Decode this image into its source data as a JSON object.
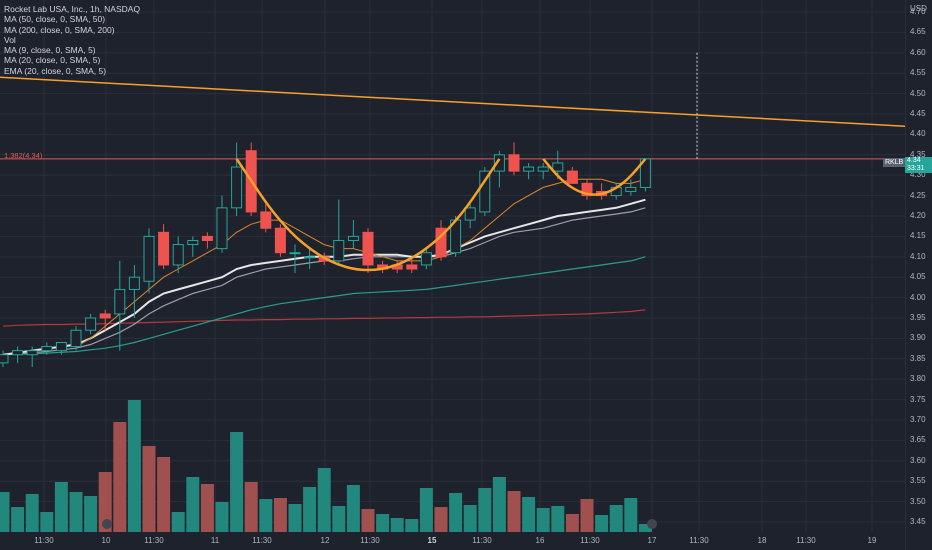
{
  "legend": {
    "title": "Rocket Lab USA, Inc., 1h, NASDAQ",
    "lines": [
      "MA (50, close, 0, SMA, 50)",
      "MA (200, close, 0, SMA, 200)",
      "Vol",
      "MA (9, close, 0, SMA, 5)",
      "MA (20, close, 0, SMA, 5)",
      "EMA (20, close, 0, SMA, 5)"
    ]
  },
  "currency": "USD",
  "fib_label": "1.382(4.34)",
  "ticker_tag": "RKLB",
  "price_tag": "4.34",
  "price_tag_sub": "33:31",
  "colors": {
    "up": "#26a69a",
    "down": "#ef5350",
    "up_vol": "#22877d",
    "down_vol": "#a0504f",
    "background": "#1e222d",
    "trendline": "#f7a028",
    "cup": "#f7a028",
    "fib": "#e05a5a",
    "ma_white": "#e6e6e6",
    "ma_gray": "#9aa0ab",
    "ma_teal": "#2a9d8f",
    "ma_red": "#b23a3a",
    "ma_orange": "#d9892b"
  },
  "chart_data": {
    "type": "candlestick",
    "y_ticks": [
      "4.70",
      "4.65",
      "4.60",
      "4.55",
      "4.50",
      "4.45",
      "4.40",
      "4.35",
      "4.30",
      "4.25",
      "4.20",
      "4.15",
      "4.10",
      "4.05",
      "4.00",
      "3.95",
      "3.90",
      "3.85",
      "3.80",
      "3.75",
      "3.70",
      "3.65",
      "3.60",
      "3.55",
      "3.50",
      "3.45"
    ],
    "ylim": [
      3.42,
      4.72
    ],
    "x_labels": [
      {
        "label": "11:30",
        "bold": false
      },
      {
        "label": "10",
        "bold": false
      },
      {
        "label": "11:30",
        "bold": false
      },
      {
        "label": "11",
        "bold": false
      },
      {
        "label": "11:30",
        "bold": false
      },
      {
        "label": "12",
        "bold": false
      },
      {
        "label": "11:30",
        "bold": false
      },
      {
        "label": "15",
        "bold": true
      },
      {
        "label": "11:30",
        "bold": false
      },
      {
        "label": "16",
        "bold": false
      },
      {
        "label": "11:30",
        "bold": false
      },
      {
        "label": "17",
        "bold": false
      },
      {
        "label": "11:30",
        "bold": false
      },
      {
        "label": "18",
        "bold": false
      },
      {
        "label": "11:30",
        "bold": false
      },
      {
        "label": "19",
        "bold": false
      }
    ],
    "candles": [
      {
        "o": 3.84,
        "h": 3.87,
        "l": 3.83,
        "c": 3.86
      },
      {
        "o": 3.86,
        "h": 3.88,
        "l": 3.84,
        "c": 3.87
      },
      {
        "o": 3.86,
        "h": 3.88,
        "l": 3.83,
        "c": 3.87
      },
      {
        "o": 3.87,
        "h": 3.89,
        "l": 3.86,
        "c": 3.88
      },
      {
        "o": 3.87,
        "h": 3.89,
        "l": 3.86,
        "c": 3.89
      },
      {
        "o": 3.88,
        "h": 3.93,
        "l": 3.87,
        "c": 3.92
      },
      {
        "o": 3.92,
        "h": 3.96,
        "l": 3.91,
        "c": 3.95
      },
      {
        "o": 3.96,
        "h": 3.97,
        "l": 3.92,
        "c": 3.95
      },
      {
        "o": 3.96,
        "h": 4.09,
        "l": 3.87,
        "c": 4.02
      },
      {
        "o": 4.02,
        "h": 4.08,
        "l": 3.95,
        "c": 4.05
      },
      {
        "o": 4.04,
        "h": 4.17,
        "l": 4.01,
        "c": 4.15
      },
      {
        "o": 4.16,
        "h": 4.18,
        "l": 4.07,
        "c": 4.08
      },
      {
        "o": 4.08,
        "h": 4.15,
        "l": 4.06,
        "c": 4.13
      },
      {
        "o": 4.13,
        "h": 4.15,
        "l": 4.1,
        "c": 4.14
      },
      {
        "o": 4.15,
        "h": 4.16,
        "l": 4.12,
        "c": 4.14
      },
      {
        "o": 4.12,
        "h": 4.25,
        "l": 4.11,
        "c": 4.22
      },
      {
        "o": 4.22,
        "h": 4.38,
        "l": 4.2,
        "c": 4.32
      },
      {
        "o": 4.36,
        "h": 4.38,
        "l": 4.2,
        "c": 4.21
      },
      {
        "o": 4.21,
        "h": 4.23,
        "l": 4.16,
        "c": 4.17
      },
      {
        "o": 4.17,
        "h": 4.18,
        "l": 4.1,
        "c": 4.11
      },
      {
        "o": 4.11,
        "h": 4.13,
        "l": 4.06,
        "c": 4.11
      },
      {
        "o": 4.1,
        "h": 4.12,
        "l": 4.07,
        "c": 4.1
      },
      {
        "o": 4.1,
        "h": 4.11,
        "l": 4.08,
        "c": 4.09
      },
      {
        "o": 4.09,
        "h": 4.24,
        "l": 4.08,
        "c": 4.14
      },
      {
        "o": 4.14,
        "h": 4.19,
        "l": 4.12,
        "c": 4.15
      },
      {
        "o": 4.16,
        "h": 4.17,
        "l": 4.06,
        "c": 4.08
      },
      {
        "o": 4.08,
        "h": 4.09,
        "l": 4.06,
        "c": 4.07
      },
      {
        "o": 4.08,
        "h": 4.09,
        "l": 4.06,
        "c": 4.07
      },
      {
        "o": 4.08,
        "h": 4.1,
        "l": 4.06,
        "c": 4.07
      },
      {
        "o": 4.08,
        "h": 4.12,
        "l": 4.07,
        "c": 4.11
      },
      {
        "o": 4.17,
        "h": 4.19,
        "l": 4.09,
        "c": 4.1
      },
      {
        "o": 4.11,
        "h": 4.2,
        "l": 4.1,
        "c": 4.19
      },
      {
        "o": 4.19,
        "h": 4.23,
        "l": 4.17,
        "c": 4.22
      },
      {
        "o": 4.21,
        "h": 4.32,
        "l": 4.2,
        "c": 4.31
      },
      {
        "o": 4.31,
        "h": 4.36,
        "l": 4.27,
        "c": 4.35
      },
      {
        "o": 4.35,
        "h": 4.38,
        "l": 4.3,
        "c": 4.31
      },
      {
        "o": 4.31,
        "h": 4.33,
        "l": 4.29,
        "c": 4.32
      },
      {
        "o": 4.31,
        "h": 4.33,
        "l": 4.29,
        "c": 4.32
      },
      {
        "o": 4.31,
        "h": 4.36,
        "l": 4.29,
        "c": 4.33
      },
      {
        "o": 4.31,
        "h": 4.32,
        "l": 4.28,
        "c": 4.28
      },
      {
        "o": 4.28,
        "h": 4.29,
        "l": 4.24,
        "c": 4.25
      },
      {
        "o": 4.26,
        "h": 4.28,
        "l": 4.24,
        "c": 4.25
      },
      {
        "o": 4.25,
        "h": 4.28,
        "l": 4.24,
        "c": 4.27
      },
      {
        "o": 4.26,
        "h": 4.29,
        "l": 4.25,
        "c": 4.27
      },
      {
        "o": 4.27,
        "h": 4.34,
        "l": 4.26,
        "c": 4.34
      }
    ],
    "volume": [
      {
        "v": 40,
        "up": true
      },
      {
        "v": 25,
        "up": true
      },
      {
        "v": 38,
        "up": true
      },
      {
        "v": 20,
        "up": true
      },
      {
        "v": 50,
        "up": true
      },
      {
        "v": 40,
        "up": true
      },
      {
        "v": 36,
        "up": true
      },
      {
        "v": 60,
        "up": false
      },
      {
        "v": 110,
        "up": false
      },
      {
        "v": 132,
        "up": true
      },
      {
        "v": 86,
        "up": false
      },
      {
        "v": 75,
        "up": false
      },
      {
        "v": 20,
        "up": true
      },
      {
        "v": 55,
        "up": true
      },
      {
        "v": 48,
        "up": false
      },
      {
        "v": 30,
        "up": true
      },
      {
        "v": 100,
        "up": true
      },
      {
        "v": 50,
        "up": false
      },
      {
        "v": 33,
        "up": true
      },
      {
        "v": 34,
        "up": false
      },
      {
        "v": 28,
        "up": true
      },
      {
        "v": 45,
        "up": true
      },
      {
        "v": 64,
        "up": true
      },
      {
        "v": 26,
        "up": true
      },
      {
        "v": 47,
        "up": true
      },
      {
        "v": 23,
        "up": false
      },
      {
        "v": 18,
        "up": true
      },
      {
        "v": 14,
        "up": true
      },
      {
        "v": 13,
        "up": true
      },
      {
        "v": 44,
        "up": true
      },
      {
        "v": 25,
        "up": false
      },
      {
        "v": 39,
        "up": true
      },
      {
        "v": 27,
        "up": true
      },
      {
        "v": 44,
        "up": true
      },
      {
        "v": 55,
        "up": true
      },
      {
        "v": 41,
        "up": false
      },
      {
        "v": 35,
        "up": true
      },
      {
        "v": 24,
        "up": true
      },
      {
        "v": 26,
        "up": true
      },
      {
        "v": 18,
        "up": false
      },
      {
        "v": 33,
        "up": false
      },
      {
        "v": 17,
        "up": true
      },
      {
        "v": 27,
        "up": true
      },
      {
        "v": 34,
        "up": true
      },
      {
        "v": 8,
        "up": true
      }
    ],
    "ma_white": [
      3.86,
      3.865,
      3.87,
      3.875,
      3.88,
      3.885,
      3.9,
      3.92,
      3.94,
      3.96,
      3.99,
      4.01,
      4.02,
      4.03,
      4.04,
      4.05,
      4.07,
      4.08,
      4.085,
      4.09,
      4.095,
      4.1,
      4.1,
      4.1,
      4.105,
      4.105,
      4.105,
      4.105,
      4.1,
      4.1,
      4.105,
      4.12,
      4.135,
      4.15,
      4.16,
      4.17,
      4.18,
      4.19,
      4.2,
      4.205,
      4.21,
      4.215,
      4.22,
      4.23,
      4.24
    ],
    "ma_gray": [
      3.86,
      3.862,
      3.865,
      3.868,
      3.872,
      3.876,
      3.885,
      3.9,
      3.915,
      3.935,
      3.96,
      3.98,
      3.995,
      4.01,
      4.02,
      4.03,
      4.05,
      4.06,
      4.07,
      4.075,
      4.08,
      4.085,
      4.09,
      4.09,
      4.095,
      4.1,
      4.1,
      4.1,
      4.1,
      4.1,
      4.1,
      4.11,
      4.12,
      4.135,
      4.15,
      4.16,
      4.165,
      4.17,
      4.18,
      4.19,
      4.195,
      4.2,
      4.205,
      4.21,
      4.22
    ],
    "ma_teal": [
      3.86,
      3.861,
      3.862,
      3.864,
      3.866,
      3.868,
      3.872,
      3.876,
      3.882,
      3.89,
      3.9,
      3.91,
      3.92,
      3.93,
      3.94,
      3.95,
      3.96,
      3.97,
      3.978,
      3.985,
      3.99,
      3.995,
      4.0,
      4.005,
      4.01,
      4.012,
      4.014,
      4.016,
      4.018,
      4.02,
      4.025,
      4.03,
      4.035,
      4.04,
      4.045,
      4.05,
      4.055,
      4.06,
      4.065,
      4.07,
      4.075,
      4.08,
      4.085,
      4.09,
      4.1
    ],
    "ma_red": [
      3.93,
      3.932,
      3.933,
      3.934,
      3.934,
      3.935,
      3.935,
      3.936,
      3.937,
      3.938,
      3.939,
      3.94,
      3.941,
      3.942,
      3.943,
      3.944,
      3.945,
      3.945,
      3.946,
      3.946,
      3.947,
      3.947,
      3.948,
      3.948,
      3.949,
      3.949,
      3.95,
      3.95,
      3.951,
      3.951,
      3.952,
      3.952,
      3.953,
      3.953,
      3.954,
      3.955,
      3.956,
      3.957,
      3.958,
      3.959,
      3.96,
      3.962,
      3.964,
      3.966,
      3.97
    ],
    "ma_orange": [
      null,
      null,
      null,
      null,
      null,
      3.88,
      3.9,
      3.93,
      3.96,
      3.99,
      4.02,
      4.05,
      4.07,
      4.09,
      4.11,
      4.13,
      4.16,
      4.18,
      4.19,
      4.19,
      4.17,
      4.15,
      4.13,
      4.12,
      4.12,
      4.11,
      4.1,
      4.09,
      4.09,
      4.09,
      4.1,
      4.12,
      4.14,
      4.17,
      4.2,
      4.23,
      4.25,
      4.27,
      4.28,
      4.29,
      4.29,
      4.29,
      4.28,
      4.28,
      4.29
    ],
    "trendline": {
      "y_start": 4.54,
      "y_end": 4.42
    },
    "fib_level": 4.34,
    "cup_main": [
      4.34,
      4.18,
      4.09,
      4.06,
      4.09,
      4.18,
      4.34
    ],
    "cup_small": [
      4.34,
      4.29,
      4.26,
      4.25,
      4.26,
      4.29,
      4.34
    ]
  }
}
